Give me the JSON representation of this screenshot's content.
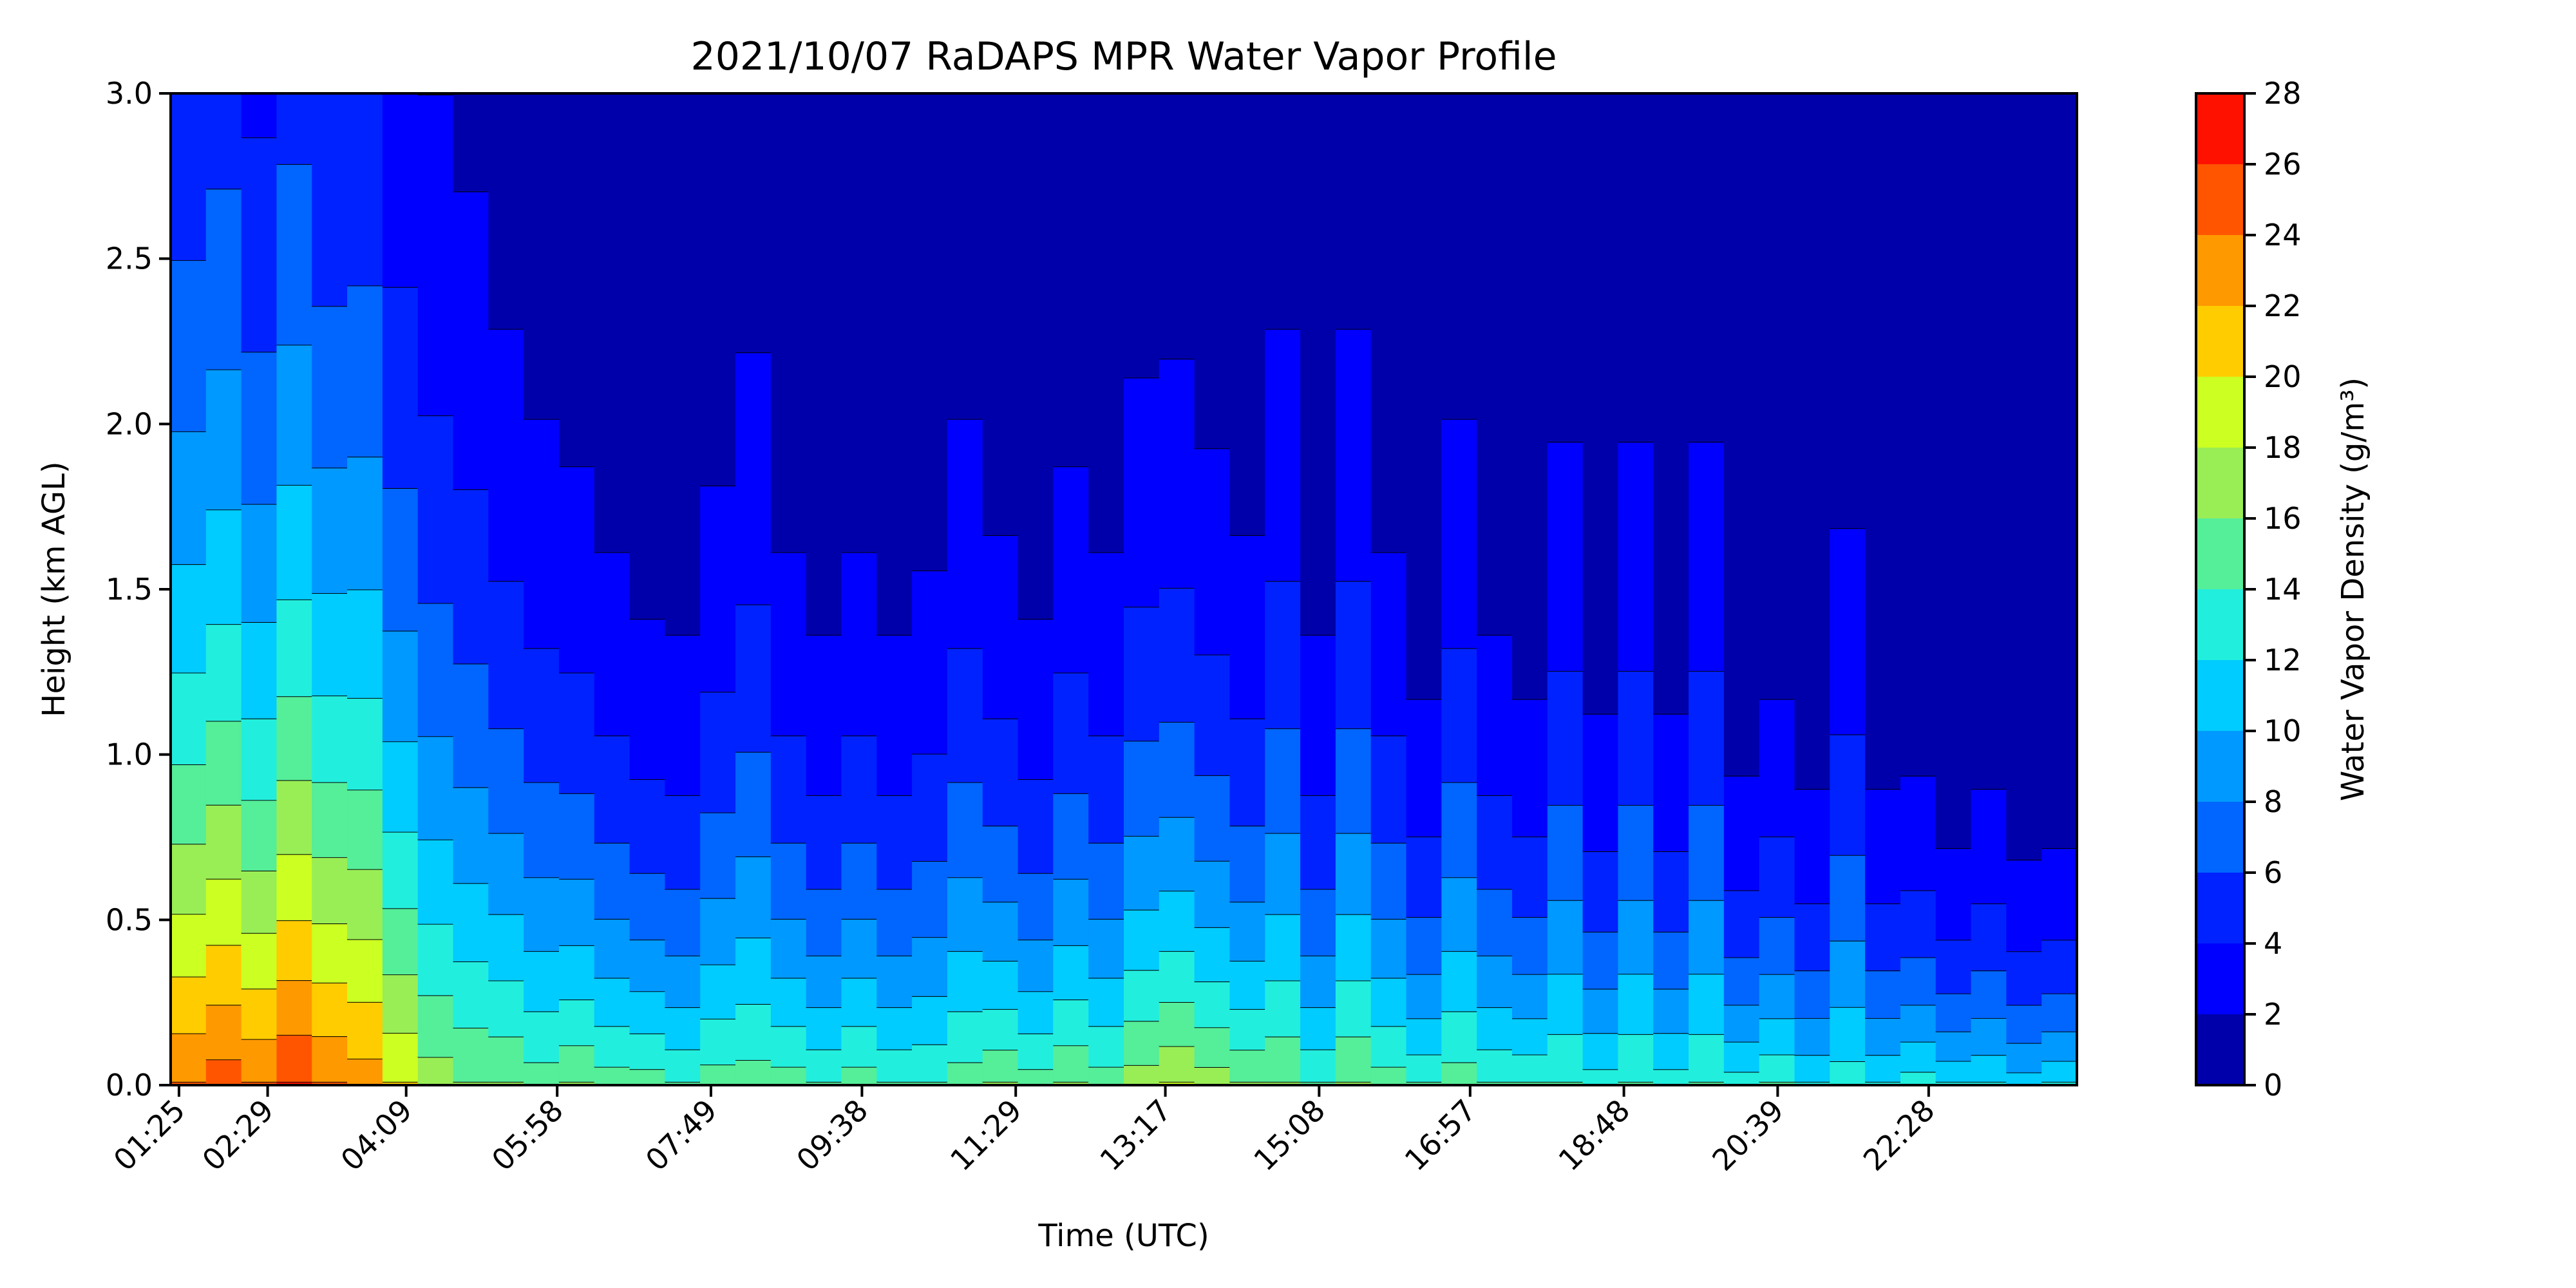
{
  "chart_data": {
    "type": "heatmap",
    "title": "2021/10/07 RaDAPS MPR Water Vapor Profile",
    "xlabel": "Time (UTC)",
    "ylabel": "Height (km AGL)",
    "colorbar_label": "Water Vapor Density (g/m³)",
    "x_ticks": [
      "01:25",
      "02:29",
      "04:09",
      "05:58",
      "07:49",
      "09:38",
      "11:29",
      "13:17",
      "15:08",
      "16:57",
      "18:48",
      "20:39",
      "22:28"
    ],
    "x_ticks_minutes": [
      85,
      149,
      249,
      358,
      469,
      578,
      689,
      797,
      908,
      1017,
      1128,
      1239,
      1348
    ],
    "xlim_minutes": [
      79,
      1455
    ],
    "y_ticks": [
      "0.0",
      "0.5",
      "1.0",
      "1.5",
      "2.0",
      "2.5",
      "3.0"
    ],
    "ylim": [
      0,
      3
    ],
    "colorbar_ticks": [
      "0",
      "2",
      "4",
      "6",
      "8",
      "10",
      "12",
      "14",
      "16",
      "18",
      "20",
      "22",
      "24",
      "26",
      "28"
    ],
    "levels": [
      0,
      2,
      4,
      6,
      8,
      10,
      12,
      14,
      16,
      18,
      20,
      22,
      24,
      26,
      28
    ],
    "level_colors": [
      "#0000aa",
      "#0000ff",
      "#0022ff",
      "#0066ff",
      "#0099ff",
      "#00ccff",
      "#22eedd",
      "#55ee99",
      "#99ee55",
      "#ccff22",
      "#ffcc00",
      "#ff9900",
      "#ff5500",
      "#ff1100",
      "#aa0000"
    ],
    "contour_line_color": "#000000",
    "surface_density": [
      24,
      25,
      24,
      26,
      24,
      23,
      20,
      17,
      16,
      16,
      15,
      16,
      15,
      15,
      14,
      15,
      15,
      15,
      14,
      15,
      14,
      14,
      15,
      16,
      15,
      16,
      15,
      17,
      18,
      17,
      16,
      16,
      14,
      16,
      15,
      14,
      15,
      14,
      14,
      14,
      13,
      14,
      13,
      14,
      13,
      14,
      12,
      13,
      12,
      13,
      12,
      12,
      11,
      12
    ],
    "scale_height_km": [
      1.8,
      1.9,
      1.6,
      1.9,
      1.7,
      1.8,
      1.5,
      1.4,
      1.3,
      1.1,
      1.0,
      0.9,
      0.8,
      0.7,
      0.7,
      0.9,
      1.1,
      0.8,
      0.7,
      0.8,
      0.7,
      0.8,
      1.0,
      0.8,
      0.7,
      0.9,
      0.8,
      1.0,
      1.0,
      0.9,
      0.8,
      1.1,
      0.7,
      1.1,
      0.8,
      0.6,
      1.0,
      0.7,
      0.6,
      1.0,
      0.6,
      1.0,
      0.6,
      1.0,
      0.5,
      0.6,
      0.5,
      0.9,
      0.5,
      0.5,
      0.4,
      0.5,
      0.4,
      0.4
    ]
  }
}
